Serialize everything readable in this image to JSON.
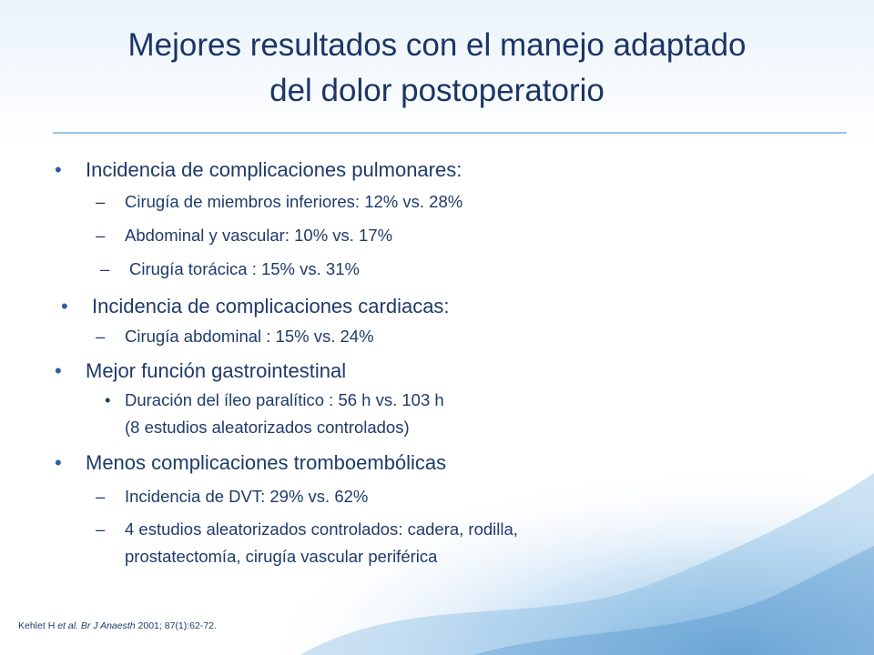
{
  "title": [
    "Mejores resultados con el manejo adaptado",
    "del dolor postoperatorio"
  ],
  "bullets": [
    {
      "text": "Incidencia de complicaciones pulmonares:",
      "sub": [
        {
          "marker": "dash",
          "lines": [
            "Cirugía de miembros inferiores: 12% vs. 28%"
          ]
        },
        {
          "marker": "dash",
          "lines": [
            "Abdominal y vascular: 10% vs. 17%"
          ]
        },
        {
          "marker": "dash",
          "lines": [
            "Cirugía torácica : 15% vs. 31%"
          ]
        }
      ]
    },
    {
      "text": "Incidencia de complicaciones cardiacas:",
      "sub": [
        {
          "marker": "dash",
          "lines": [
            "Cirugía abdominal : 15% vs. 24%"
          ]
        }
      ]
    },
    {
      "text": "Mejor función gastrointestinal",
      "sub": [
        {
          "marker": "dot",
          "lines": [
            "Duración del íleo paralítico : 56 h vs. 103 h",
            "(8  estudios aleatorizados controlados)"
          ]
        }
      ]
    },
    {
      "text": "Menos complicaciones tromboembólicas",
      "sub": [
        {
          "marker": "dash",
          "lines": [
            "Incidencia de DVT: 29% vs. 62%"
          ]
        },
        {
          "marker": "dash",
          "lines": [
            "4 estudios aleatorizados controlados: cadera, rodilla,",
            "prostatectomía, cirugía vascular periférica"
          ]
        }
      ]
    }
  ],
  "reference": [
    {
      "text": "Kehlet H ",
      "italic": false
    },
    {
      "text": "et al.",
      "italic": true
    },
    {
      "text": " Br J Anaesth",
      "italic": true
    },
    {
      "text": " 2001; 87(1):62-72.",
      "italic": false
    }
  ]
}
